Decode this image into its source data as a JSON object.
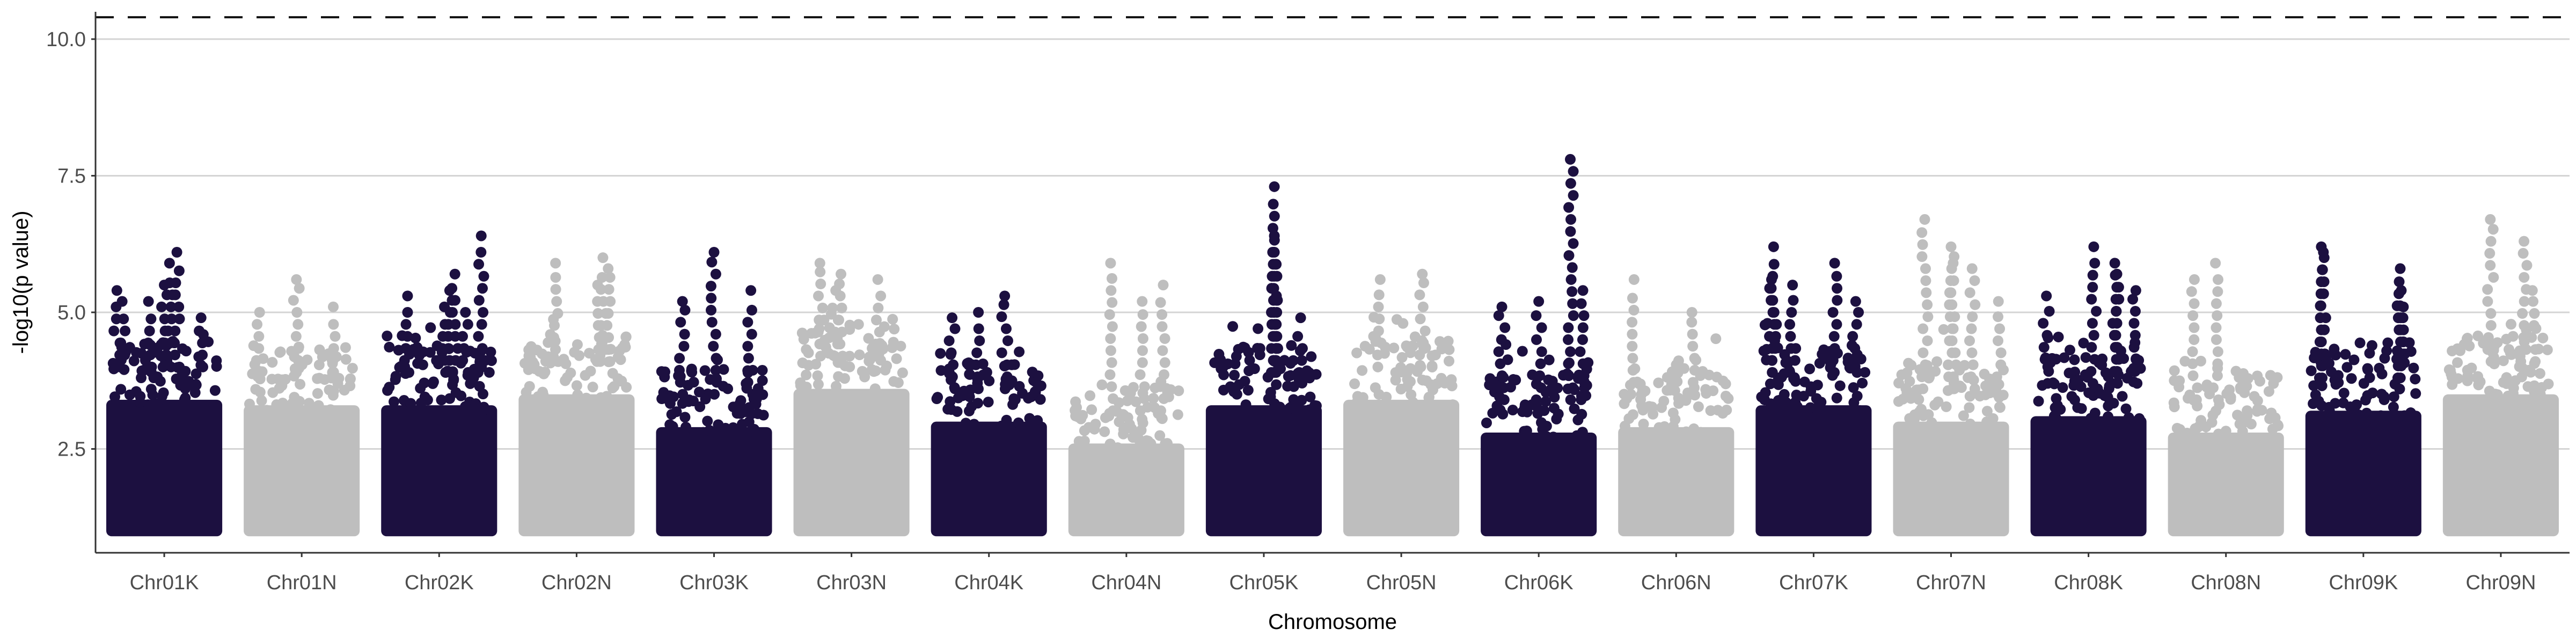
{
  "chart_data": {
    "type": "scatter",
    "subtype": "manhattan",
    "title": "",
    "xlabel": "Chromosome",
    "ylabel": "-log10(p value)",
    "ylim": [
      0.6,
      10.5
    ],
    "yticks": [
      2.5,
      5.0,
      7.5,
      10.0
    ],
    "ytick_labels": [
      "2.5",
      "5.0",
      "7.5",
      "10.0"
    ],
    "grid": "major horizontal",
    "threshold_line": {
      "value": 10.4,
      "style": "dashed"
    },
    "colors": {
      "odd": "#1c1040",
      "even": "#bebebe"
    },
    "categories": [
      "Chr01K",
      "Chr01N",
      "Chr02K",
      "Chr02N",
      "Chr03K",
      "Chr03N",
      "Chr04K",
      "Chr04N",
      "Chr05K",
      "Chr05N",
      "Chr06K",
      "Chr06N",
      "Chr07K",
      "Chr07N",
      "Chr08K",
      "Chr08N",
      "Chr09K",
      "Chr09N"
    ],
    "band_top": [
      4.0,
      3.9,
      3.9,
      4.1,
      3.5,
      4.2,
      3.6,
      3.2,
      3.9,
      4.0,
      3.4,
      3.5,
      3.9,
      3.6,
      3.7,
      3.4,
      3.8,
      4.1
    ],
    "peaks": [
      {
        "chr": "Chr01K",
        "pos": 0.05,
        "value": 5.4
      },
      {
        "chr": "Chr01K",
        "pos": 0.1,
        "value": 5.2
      },
      {
        "chr": "Chr01K",
        "pos": 0.35,
        "value": 5.2
      },
      {
        "chr": "Chr01K",
        "pos": 0.5,
        "value": 5.5
      },
      {
        "chr": "Chr01K",
        "pos": 0.55,
        "value": 5.9
      },
      {
        "chr": "Chr01K",
        "pos": 0.62,
        "value": 6.1
      },
      {
        "chr": "Chr01K",
        "pos": 0.85,
        "value": 4.9
      },
      {
        "chr": "Chr01N",
        "pos": 0.45,
        "value": 5.6
      },
      {
        "chr": "Chr01N",
        "pos": 0.1,
        "value": 5.0
      },
      {
        "chr": "Chr01N",
        "pos": 0.8,
        "value": 5.1
      },
      {
        "chr": "Chr02K",
        "pos": 0.2,
        "value": 5.3
      },
      {
        "chr": "Chr02K",
        "pos": 0.55,
        "value": 5.1
      },
      {
        "chr": "Chr02K",
        "pos": 0.6,
        "value": 5.4
      },
      {
        "chr": "Chr02K",
        "pos": 0.65,
        "value": 5.7
      },
      {
        "chr": "Chr02K",
        "pos": 0.75,
        "value": 5.0
      },
      {
        "chr": "Chr02K",
        "pos": 0.9,
        "value": 6.4
      },
      {
        "chr": "Chr02N",
        "pos": 0.3,
        "value": 5.9
      },
      {
        "chr": "Chr02N",
        "pos": 0.7,
        "value": 5.5
      },
      {
        "chr": "Chr02N",
        "pos": 0.75,
        "value": 6.0
      },
      {
        "chr": "Chr02N",
        "pos": 0.8,
        "value": 5.8
      },
      {
        "chr": "Chr03K",
        "pos": 0.5,
        "value": 6.1
      },
      {
        "chr": "Chr03K",
        "pos": 0.2,
        "value": 5.2
      },
      {
        "chr": "Chr03K",
        "pos": 0.85,
        "value": 5.4
      },
      {
        "chr": "Chr03N",
        "pos": 0.2,
        "value": 5.9
      },
      {
        "chr": "Chr03N",
        "pos": 0.35,
        "value": 5.4
      },
      {
        "chr": "Chr03N",
        "pos": 0.4,
        "value": 5.7
      },
      {
        "chr": "Chr03N",
        "pos": 0.75,
        "value": 5.6
      },
      {
        "chr": "Chr04K",
        "pos": 0.15,
        "value": 4.9
      },
      {
        "chr": "Chr04K",
        "pos": 0.4,
        "value": 5.0
      },
      {
        "chr": "Chr04K",
        "pos": 0.65,
        "value": 5.3
      },
      {
        "chr": "Chr04N",
        "pos": 0.35,
        "value": 5.9
      },
      {
        "chr": "Chr04N",
        "pos": 0.65,
        "value": 5.2
      },
      {
        "chr": "Chr04N",
        "pos": 0.85,
        "value": 5.5
      },
      {
        "chr": "Chr05K",
        "pos": 0.6,
        "value": 7.3
      },
      {
        "chr": "Chr05K",
        "pos": 0.6,
        "value": 6.4
      },
      {
        "chr": "Chr05K",
        "pos": 0.6,
        "value": 6.1
      },
      {
        "chr": "Chr05K",
        "pos": 0.62,
        "value": 5.3
      },
      {
        "chr": "Chr05K",
        "pos": 0.85,
        "value": 4.9
      },
      {
        "chr": "Chr05N",
        "pos": 0.3,
        "value": 5.6
      },
      {
        "chr": "Chr05N",
        "pos": 0.7,
        "value": 5.7
      },
      {
        "chr": "Chr06K",
        "pos": 0.15,
        "value": 5.1
      },
      {
        "chr": "Chr06K",
        "pos": 0.5,
        "value": 5.2
      },
      {
        "chr": "Chr06K",
        "pos": 0.8,
        "value": 7.8
      },
      {
        "chr": "Chr06K",
        "pos": 0.92,
        "value": 5.4
      },
      {
        "chr": "Chr06N",
        "pos": 0.1,
        "value": 5.6
      },
      {
        "chr": "Chr06N",
        "pos": 0.65,
        "value": 5.0
      },
      {
        "chr": "Chr07K",
        "pos": 0.12,
        "value": 6.2
      },
      {
        "chr": "Chr07K",
        "pos": 0.1,
        "value": 5.6
      },
      {
        "chr": "Chr07K",
        "pos": 0.3,
        "value": 5.5
      },
      {
        "chr": "Chr07K",
        "pos": 0.7,
        "value": 5.9
      },
      {
        "chr": "Chr07K",
        "pos": 0.9,
        "value": 5.2
      },
      {
        "chr": "Chr07N",
        "pos": 0.25,
        "value": 6.7
      },
      {
        "chr": "Chr07N",
        "pos": 0.5,
        "value": 6.2
      },
      {
        "chr": "Chr07N",
        "pos": 0.52,
        "value": 5.9
      },
      {
        "chr": "Chr07N",
        "pos": 0.7,
        "value": 5.8
      },
      {
        "chr": "Chr07N",
        "pos": 0.95,
        "value": 5.2
      },
      {
        "chr": "Chr08K",
        "pos": 0.1,
        "value": 5.3
      },
      {
        "chr": "Chr08K",
        "pos": 0.55,
        "value": 6.2
      },
      {
        "chr": "Chr08K",
        "pos": 0.75,
        "value": 5.9
      },
      {
        "chr": "Chr08K",
        "pos": 0.77,
        "value": 5.7
      },
      {
        "chr": "Chr08K",
        "pos": 0.95,
        "value": 5.4
      },
      {
        "chr": "Chr08N",
        "pos": 0.2,
        "value": 5.6
      },
      {
        "chr": "Chr08N",
        "pos": 0.4,
        "value": 5.9
      },
      {
        "chr": "Chr09K",
        "pos": 0.1,
        "value": 6.2
      },
      {
        "chr": "Chr09K",
        "pos": 0.12,
        "value": 6.1
      },
      {
        "chr": "Chr09K",
        "pos": 0.85,
        "value": 5.8
      },
      {
        "chr": "Chr09K",
        "pos": 0.86,
        "value": 5.4
      },
      {
        "chr": "Chr09K",
        "pos": 0.88,
        "value": 5.1
      },
      {
        "chr": "Chr09N",
        "pos": 0.4,
        "value": 6.7
      },
      {
        "chr": "Chr09N",
        "pos": 0.72,
        "value": 6.3
      },
      {
        "chr": "Chr09N",
        "pos": 0.8,
        "value": 5.4
      }
    ]
  }
}
